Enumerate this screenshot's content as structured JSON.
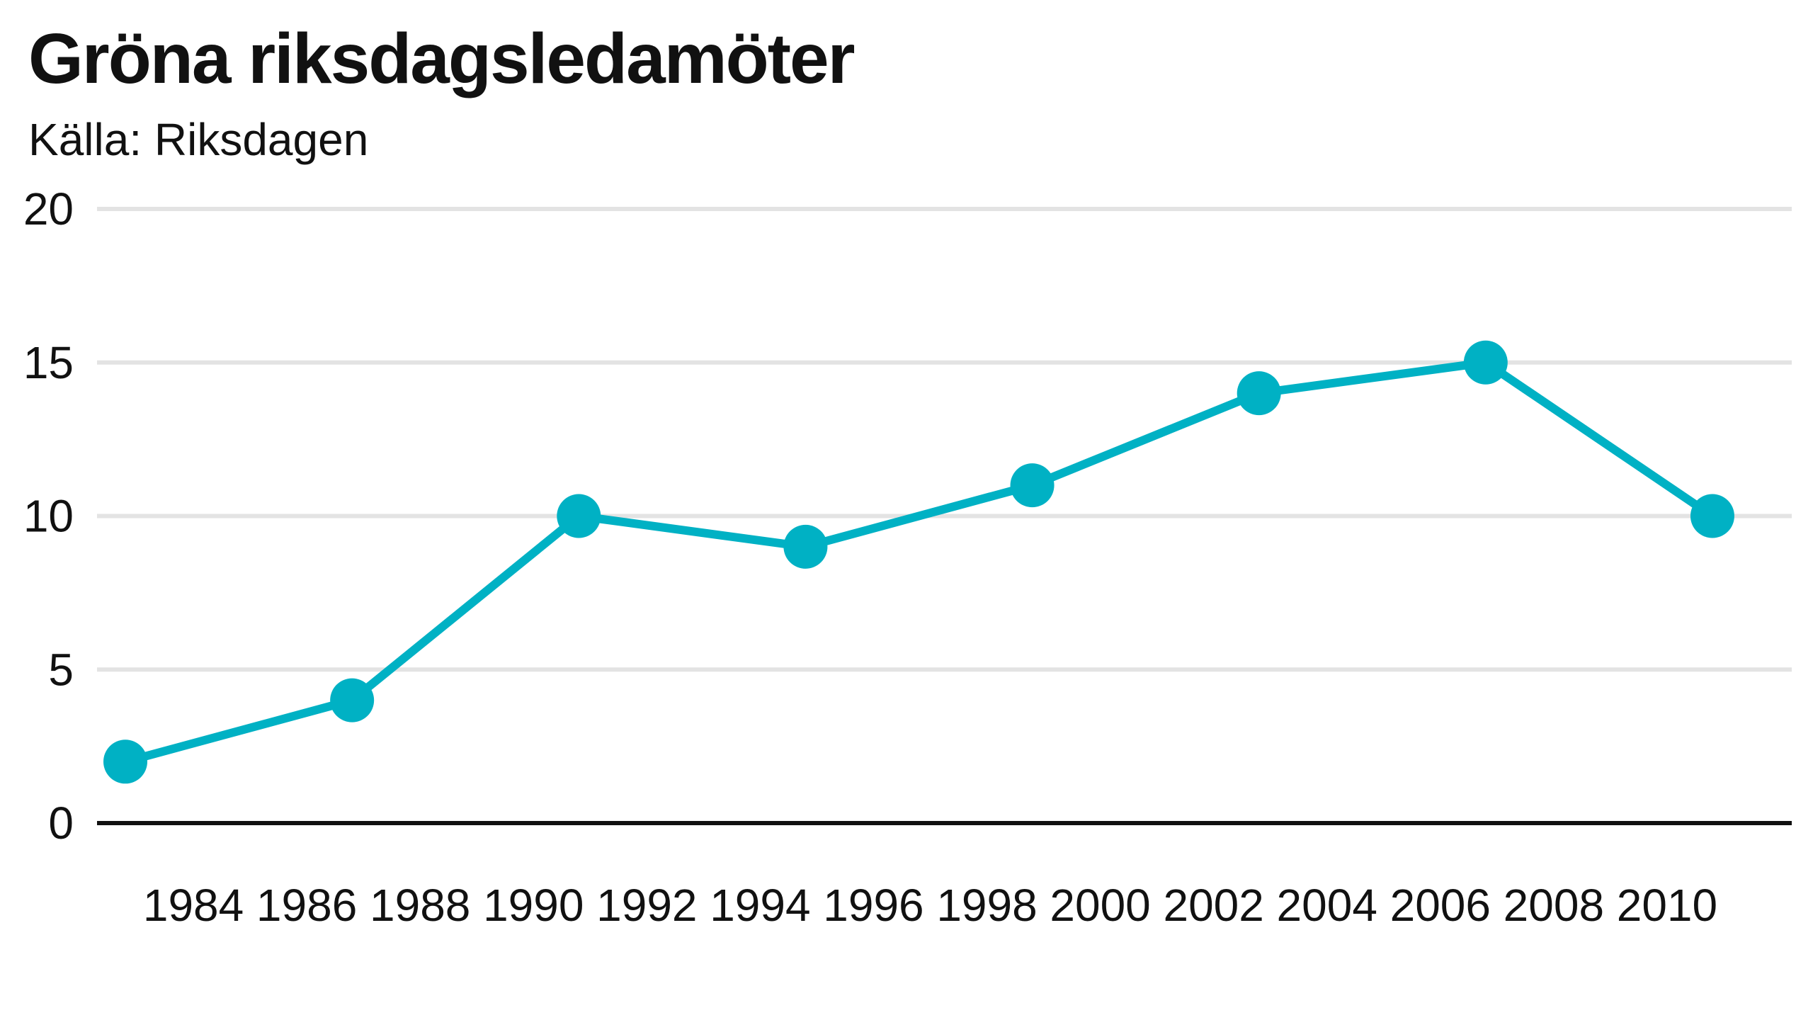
{
  "chart_data": {
    "type": "line",
    "title": "Gröna riksdagsledamöter",
    "subtitle": "Källa: Riksdagen",
    "xlabel": "",
    "ylabel": "",
    "x_ticks": [
      "1984",
      "1986",
      "1988",
      "1990",
      "1992",
      "1994",
      "1996",
      "1998",
      "2000",
      "2002",
      "2004",
      "2006",
      "2008",
      "2010"
    ],
    "y_ticks": [
      "0",
      "5",
      "10",
      "15",
      "20"
    ],
    "xlim": [
      1982.3,
      2012.2
    ],
    "ylim": [
      0,
      20
    ],
    "grid": true,
    "colors": {
      "line": "#00b1c4",
      "grid": "#e3e3e3",
      "baseline": "#111111"
    },
    "series": [
      {
        "points": [
          {
            "x": 1982.8,
            "y": 2
          },
          {
            "x": 1986.8,
            "y": 4
          },
          {
            "x": 1990.8,
            "y": 10
          },
          {
            "x": 1994.8,
            "y": 9
          },
          {
            "x": 1998.8,
            "y": 11
          },
          {
            "x": 2002.8,
            "y": 14
          },
          {
            "x": 2006.8,
            "y": 15
          },
          {
            "x": 2010.8,
            "y": 10
          }
        ]
      }
    ]
  }
}
